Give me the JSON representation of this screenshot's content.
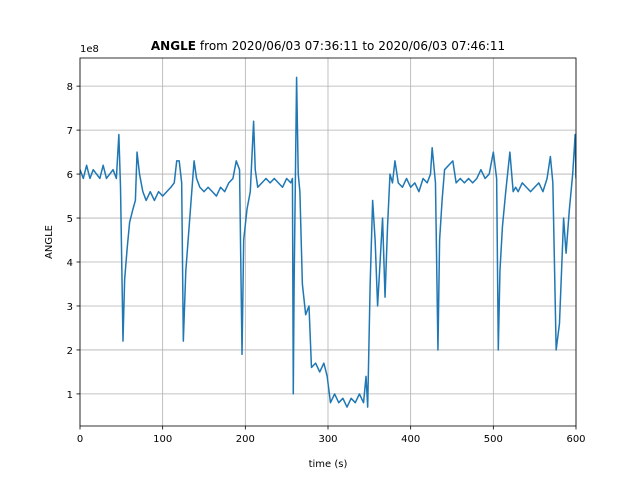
{
  "chart_data": {
    "type": "line",
    "title": "ANGLE",
    "title_suffix": "from 2020/06/03 07:36:11 to 2020/06/03 07:46:11",
    "x_label": "time (s)",
    "y_label": "ANGLE",
    "y_offset_label": "1e8",
    "xlim": [
      0,
      600
    ],
    "ylim": [
      0.27,
      8.64
    ],
    "xticks": [
      0,
      100,
      200,
      300,
      400,
      500,
      600
    ],
    "yticks": [
      1,
      2,
      3,
      4,
      5,
      6,
      7,
      8
    ],
    "grid": true,
    "series": [
      {
        "name": "ANGLE",
        "color": "#1f77b4",
        "x": [
          0,
          4,
          8,
          12,
          16,
          20,
          24,
          28,
          32,
          36,
          40,
          44,
          47,
          49,
          51,
          52,
          54,
          57,
          60,
          64,
          67,
          69,
          72,
          76,
          80,
          85,
          90,
          95,
          100,
          105,
          110,
          114,
          117,
          120,
          123,
          125,
          128,
          132,
          136,
          138,
          141,
          145,
          150,
          155,
          160,
          165,
          170,
          175,
          180,
          185,
          189,
          193,
          196,
          198,
          202,
          206,
          210,
          212,
          215,
          220,
          225,
          230,
          235,
          240,
          245,
          250,
          255,
          257,
          258,
          259,
          261,
          262,
          264,
          266,
          269,
          273,
          277,
          280,
          285,
          290,
          295,
          299,
          303,
          308,
          313,
          318,
          323,
          328,
          333,
          338,
          343,
          346,
          348,
          351,
          354,
          357,
          360,
          363,
          366,
          369,
          372,
          375,
          378,
          381,
          385,
          390,
          395,
          400,
          405,
          410,
          415,
          420,
          424,
          426,
          430,
          433,
          435,
          438,
          441,
          446,
          451,
          455,
          460,
          465,
          470,
          475,
          480,
          485,
          490,
          495,
          500,
          504,
          506,
          508,
          511,
          515,
          520,
          524,
          527,
          530,
          535,
          540,
          545,
          550,
          555,
          560,
          565,
          569,
          572,
          576,
          580,
          584,
          585,
          588,
          592,
          596,
          599,
          600
        ],
        "values": [
          6.1,
          5.9,
          6.2,
          5.9,
          6.1,
          6.0,
          5.9,
          6.2,
          5.9,
          6.0,
          6.1,
          5.9,
          6.9,
          5.7,
          3.4,
          2.2,
          3.6,
          4.3,
          4.9,
          5.2,
          5.4,
          6.5,
          6.0,
          5.6,
          5.4,
          5.6,
          5.4,
          5.6,
          5.5,
          5.6,
          5.7,
          5.8,
          6.3,
          6.3,
          5.8,
          2.2,
          3.8,
          4.8,
          5.8,
          6.3,
          5.9,
          5.7,
          5.6,
          5.7,
          5.6,
          5.5,
          5.7,
          5.6,
          5.8,
          5.9,
          6.3,
          6.1,
          1.9,
          4.5,
          5.2,
          5.6,
          7.2,
          6.1,
          5.7,
          5.8,
          5.9,
          5.8,
          5.9,
          5.8,
          5.7,
          5.9,
          5.8,
          5.9,
          1.0,
          3.5,
          6.6,
          8.2,
          6.0,
          5.6,
          3.5,
          2.8,
          3.0,
          1.6,
          1.7,
          1.5,
          1.7,
          1.4,
          0.8,
          1.0,
          0.8,
          0.9,
          0.7,
          0.9,
          0.8,
          1.0,
          0.8,
          1.4,
          0.7,
          3.5,
          5.4,
          4.5,
          3.0,
          4.0,
          5.0,
          3.2,
          4.8,
          6.0,
          5.8,
          6.3,
          5.8,
          5.7,
          5.9,
          5.7,
          5.8,
          5.6,
          5.9,
          5.8,
          6.0,
          6.6,
          5.8,
          2.0,
          4.5,
          5.4,
          6.1,
          6.2,
          6.3,
          5.8,
          5.9,
          5.8,
          5.9,
          5.8,
          5.9,
          6.1,
          5.9,
          6.0,
          6.5,
          5.9,
          2.0,
          3.8,
          4.8,
          5.6,
          6.5,
          5.6,
          5.7,
          5.6,
          5.8,
          5.7,
          5.6,
          5.7,
          5.8,
          5.6,
          5.9,
          6.4,
          5.8,
          2.0,
          2.6,
          4.5,
          5.0,
          4.2,
          5.2,
          6.0,
          6.9,
          5.9
        ]
      }
    ]
  }
}
